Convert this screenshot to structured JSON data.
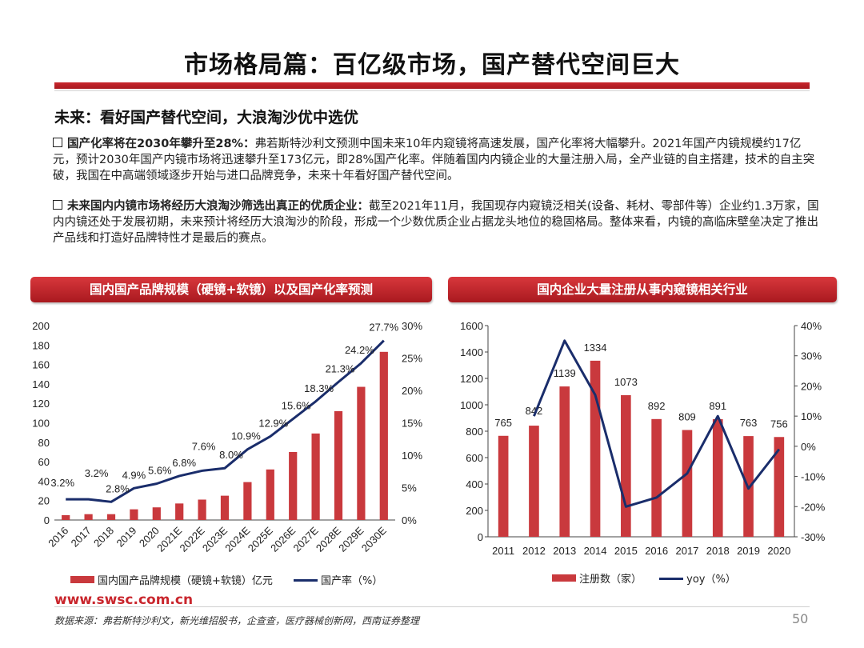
{
  "title": "市场格局篇：百亿级市场，国产替代空间巨大",
  "section_heading": "未来：看好国产替代空间，大浪淘沙优中选优",
  "bullets": [
    {
      "lead": "国产化率将在2030年攀升至28%：",
      "text": "弗若斯特沙利文预测中国未来10年内窥镜将高速发展，国产化率将大幅攀升。2021年国产内镜规模约17亿元，预计2030年国产内镜市场将迅速攀升至173亿元，即28%国产化率。伴随着国内内镜企业的大量注册入局，全产业链的自主搭建，技术的自主突破，我国在中高端领域逐步开始与进口品牌竞争，未来十年看好国产替代空间。"
    },
    {
      "lead": "未来国内内镜市场将经历大浪淘沙筛选出真正的优质企业：",
      "text": "截至2021年11月，我国现存内窥镜泛相关(设备、耗材、零部件等）企业约1.3万家，国内内镜还处于发展初期，未来预计将经历大浪淘沙的阶段，形成一个少数优质企业占据龙头地位的稳固格局。整体来看，内镜的高临床壁垒决定了推出产品线和打造好品牌特性才是最后的赛点。"
    }
  ],
  "chart_banners": {
    "left": "国内国产品牌规模（硬镜+软镜）以及国产化率预测",
    "right": "国内企业大量注册从事内窥镜相关行业"
  },
  "chart_data": [
    {
      "type": "bar",
      "categories": [
        "2016",
        "2017",
        "2018",
        "2019",
        "2020",
        "2021E",
        "2022E",
        "2023E",
        "2024E",
        "2025E",
        "2026E",
        "2027E",
        "2028E",
        "2029E",
        "2030E"
      ],
      "series": [
        {
          "name": "国内国产品牌规模（硬镜+软镜）亿元",
          "type": "bar",
          "axis": "left",
          "values": [
            5,
            6,
            6,
            11,
            13,
            17,
            21,
            25,
            39,
            52,
            70,
            89,
            112,
            137,
            173
          ]
        },
        {
          "name": "国产率（%）",
          "type": "line",
          "axis": "right",
          "values": [
            3.2,
            3.2,
            2.8,
            4.9,
            5.6,
            6.8,
            7.6,
            8.0,
            10.9,
            12.9,
            15.6,
            18.3,
            21.3,
            24.2,
            27.7
          ],
          "labels": [
            "3.2%",
            "3.2%",
            "2.8%",
            "4.9%",
            "5.6%",
            "6.8%",
            "7.6%",
            "8.0%",
            "10.9%",
            "12.9%",
            "15.6%",
            "18.3%",
            "21.3%",
            "24.2%",
            "27.7%"
          ]
        }
      ],
      "y_left": {
        "min": 0,
        "max": 200,
        "ticks": [
          0,
          20,
          40,
          60,
          80,
          100,
          120,
          140,
          160,
          180,
          200
        ]
      },
      "y_right": {
        "min": 0,
        "max": 30,
        "ticks": [
          "0%",
          "5%",
          "10%",
          "15%",
          "20%",
          "25%",
          "30%"
        ]
      },
      "colors": {
        "bar": "#c9393d",
        "line": "#1a2d6b"
      },
      "legend_position": "bottom"
    },
    {
      "type": "bar",
      "categories": [
        "2011",
        "2012",
        "2013",
        "2014",
        "2015",
        "2016",
        "2017",
        "2018",
        "2019",
        "2020"
      ],
      "series": [
        {
          "name": "注册数（家）",
          "type": "bar",
          "axis": "left",
          "values": [
            765,
            842,
            1139,
            1334,
            1073,
            892,
            809,
            891,
            763,
            756
          ]
        },
        {
          "name": "yoy（%）",
          "type": "line",
          "axis": "right",
          "values": [
            null,
            10,
            35,
            17,
            -20,
            -17,
            -9,
            10,
            -14,
            -1
          ]
        }
      ],
      "y_left": {
        "min": 0,
        "max": 1600,
        "ticks": [
          0,
          200,
          400,
          600,
          800,
          1000,
          1200,
          1400,
          1600
        ]
      },
      "y_right": {
        "min": -30,
        "max": 40,
        "ticks": [
          "-30%",
          "-20%",
          "-10%",
          "0%",
          "10%",
          "20%",
          "30%",
          "40%"
        ]
      },
      "colors": {
        "bar": "#c9393d",
        "line": "#1a2d6b"
      },
      "legend_position": "bottom"
    }
  ],
  "footer": {
    "website": "www.swsc.com.cn",
    "source": "数据来源：弗若斯特沙利文，新光维招股书，企查查，医疗器械创新网，西南证券整理",
    "page": "50"
  }
}
